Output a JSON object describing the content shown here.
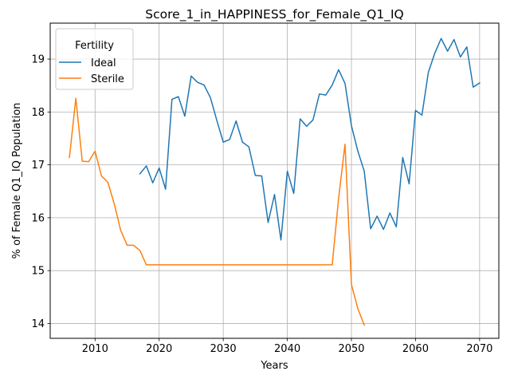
{
  "chart_data": {
    "type": "line",
    "title": "Score_1_in_HAPPINESS_for_Female_Q1_IQ",
    "xlabel": "Years",
    "ylabel": "% of Female Q1_IQ Population",
    "xlim": [
      2003,
      2073
    ],
    "ylim": [
      13.72,
      19.68
    ],
    "xticks": [
      2010,
      2020,
      2030,
      2040,
      2050,
      2060,
      2070
    ],
    "yticks": [
      14,
      15,
      16,
      17,
      18,
      19
    ],
    "grid": true,
    "legend": {
      "title": "Fertility",
      "position": "top-left"
    },
    "series": [
      {
        "name": "Ideal",
        "color": "#1f77b4",
        "x": [
          2017,
          2018,
          2019,
          2020,
          2021,
          2022,
          2023,
          2024,
          2025,
          2026,
          2027,
          2028,
          2029,
          2030,
          2031,
          2032,
          2033,
          2034,
          2035,
          2036,
          2037,
          2038,
          2039,
          2040,
          2041,
          2042,
          2043,
          2044,
          2045,
          2046,
          2047,
          2048,
          2049,
          2050,
          2051,
          2052,
          2053,
          2054,
          2055,
          2056,
          2057,
          2058,
          2059,
          2060,
          2061,
          2062,
          2063,
          2064,
          2065,
          2066,
          2067,
          2068,
          2069,
          2070
        ],
        "y": [
          16.83,
          16.98,
          16.66,
          16.94,
          16.54,
          18.24,
          18.29,
          17.92,
          18.68,
          18.56,
          18.51,
          18.27,
          17.84,
          17.43,
          17.48,
          17.83,
          17.43,
          17.34,
          16.8,
          16.79,
          15.91,
          16.44,
          15.58,
          16.88,
          16.46,
          17.87,
          17.73,
          17.85,
          18.34,
          18.32,
          18.51,
          18.8,
          18.54,
          17.74,
          17.26,
          16.88,
          15.79,
          16.03,
          15.78,
          16.09,
          15.83,
          17.14,
          16.64,
          18.03,
          17.94,
          18.75,
          19.11,
          19.39,
          19.15,
          19.37,
          19.04,
          19.23,
          18.47,
          18.55
        ]
      },
      {
        "name": "Sterile",
        "color": "#ff7f0e",
        "x": [
          2006,
          2007,
          2008,
          2009,
          2010,
          2011,
          2012,
          2013,
          2014,
          2015,
          2016,
          2017,
          2018,
          2019,
          2020,
          2021,
          2022,
          2023,
          2024,
          2025,
          2026,
          2027,
          2028,
          2029,
          2030,
          2031,
          2032,
          2033,
          2034,
          2035,
          2036,
          2037,
          2038,
          2039,
          2040,
          2041,
          2042,
          2043,
          2044,
          2045,
          2046,
          2047,
          2048,
          2049,
          2050,
          2051,
          2052
        ],
        "y": [
          17.14,
          18.26,
          17.07,
          17.06,
          17.26,
          16.79,
          16.67,
          16.26,
          15.76,
          15.48,
          15.48,
          15.38,
          15.11,
          15.11,
          15.11,
          15.11,
          15.11,
          15.11,
          15.11,
          15.11,
          15.11,
          15.11,
          15.11,
          15.11,
          15.11,
          15.11,
          15.11,
          15.11,
          15.11,
          15.11,
          15.11,
          15.11,
          15.11,
          15.11,
          15.11,
          15.11,
          15.11,
          15.11,
          15.11,
          15.11,
          15.11,
          15.11,
          16.37,
          17.39,
          14.74,
          14.28,
          13.97
        ]
      }
    ]
  }
}
